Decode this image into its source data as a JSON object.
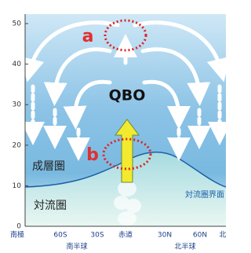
{
  "diagram": {
    "yaxis": {
      "ticks": [
        "50",
        "40",
        "30",
        "20",
        "10",
        "0"
      ]
    },
    "xaxis": {
      "ticks": [
        "南極",
        "60S",
        "30S",
        "赤道",
        "30N",
        "60N",
        "北"
      ],
      "hemispheres": [
        "南半球",
        "北半球"
      ]
    },
    "labels": {
      "a": "a",
      "b": "b",
      "qbo": "QBO",
      "stratosphere": "成層圏",
      "troposphere": "対流圏",
      "tropopause": "対流圏界面"
    }
  }
}
